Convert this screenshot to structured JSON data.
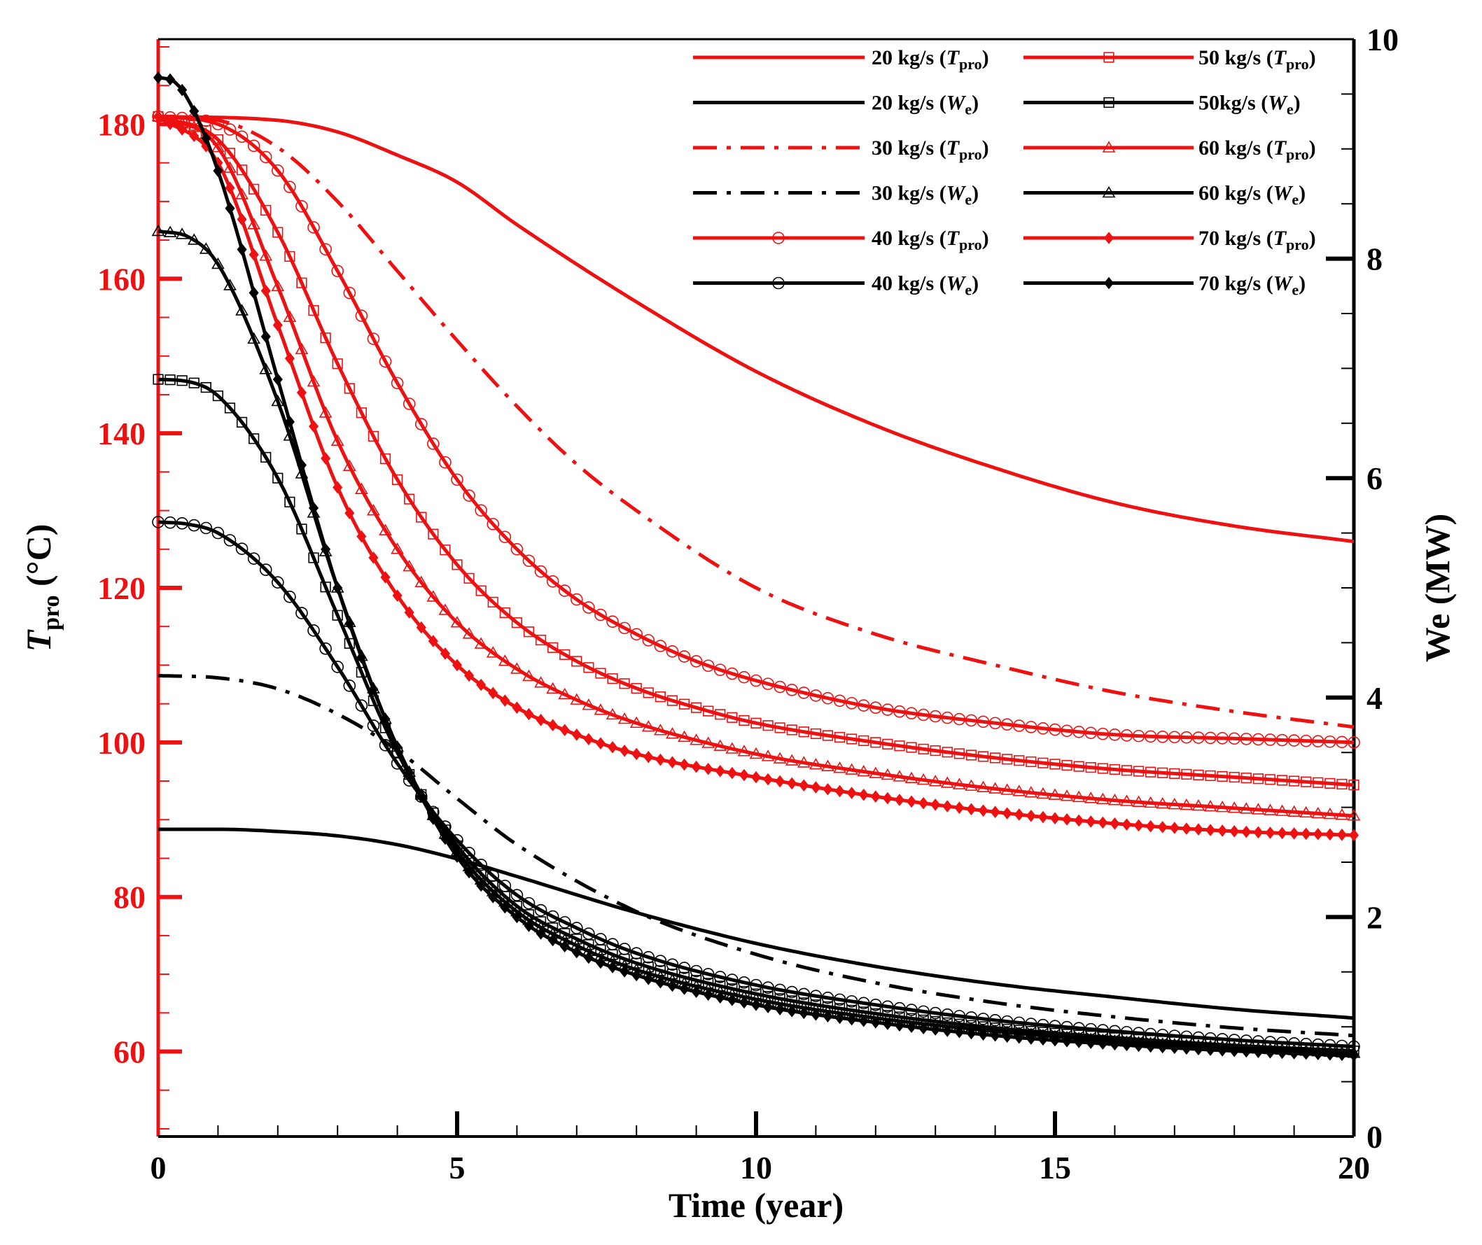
{
  "chart_data": {
    "type": "line",
    "colors": {
      "tpro": "#ee1111",
      "we": "#000000"
    },
    "x_axis": {
      "label": "Time (year)",
      "range": [
        0,
        20
      ],
      "ticks": [
        0,
        5,
        10,
        15,
        20
      ],
      "tick_labels": [
        "0",
        "5",
        "10",
        "15",
        "20"
      ]
    },
    "y_left": {
      "label_main": "T",
      "label_sub": "pro",
      "label_unit": " (°C)",
      "range": [
        49,
        191
      ],
      "ticks": [
        60,
        80,
        100,
        120,
        140,
        160,
        180
      ],
      "tick_labels": [
        "60",
        "80",
        "100",
        "120",
        "140",
        "160",
        "180"
      ]
    },
    "y_right": {
      "label": "We (MW)",
      "range": [
        0,
        10
      ],
      "ticks": [
        0,
        2,
        4,
        6,
        8,
        10
      ],
      "tick_labels": [
        "0",
        "2",
        "4",
        "6",
        "8",
        "10"
      ]
    },
    "legend": {
      "position": "top-right",
      "entries": [
        {
          "id": "t20",
          "prefix": "20 kg/s (",
          "var": "T",
          "sub": "pro",
          "suffix": ")"
        },
        {
          "id": "w20",
          "prefix": "20 kg/s (",
          "var": "W",
          "sub": "e",
          "suffix": ")"
        },
        {
          "id": "t30",
          "prefix": "30 kg/s (",
          "var": "T",
          "sub": "pro",
          "suffix": ")"
        },
        {
          "id": "w30",
          "prefix": "30 kg/s (",
          "var": "W",
          "sub": "e",
          "suffix": ")"
        },
        {
          "id": "t40",
          "prefix": "40 kg/s (",
          "var": "T",
          "sub": "pro",
          "suffix": ")"
        },
        {
          "id": "w40",
          "prefix": "40 kg/s (",
          "var": "W",
          "sub": "e",
          "suffix": ")"
        },
        {
          "id": "t50",
          "prefix": "50 kg/s (",
          "var": "T",
          "sub": "pro",
          "suffix": ")"
        },
        {
          "id": "w50",
          "prefix": "50kg/s (",
          "var": "W",
          "sub": "e",
          "suffix": ")"
        },
        {
          "id": "t60",
          "prefix": "60 kg/s (",
          "var": "T",
          "sub": "pro",
          "suffix": ")"
        },
        {
          "id": "w60",
          "prefix": "60 kg/s (",
          "var": "W",
          "sub": "e",
          "suffix": ")"
        },
        {
          "id": "t70",
          "prefix": "70 kg/s (",
          "var": "T",
          "sub": "pro",
          "suffix": ")"
        },
        {
          "id": "w70",
          "prefix": "70 kg/s (",
          "var": "W",
          "sub": "e",
          "suffix": ")"
        }
      ]
    },
    "series": [
      {
        "id": "t20",
        "name": "20 kg/s (Tpro)",
        "axis": "left",
        "style": "solid",
        "marker": "none",
        "x": [
          0,
          2,
          3,
          4,
          5,
          6,
          8,
          10,
          12,
          14,
          16,
          18,
          20
        ],
        "y": [
          181,
          180.5,
          179,
          176,
          172.5,
          167,
          157,
          148,
          141,
          135.5,
          131,
          128,
          126
        ]
      },
      {
        "id": "t30",
        "name": "30 kg/s (Tpro)",
        "axis": "left",
        "style": "dashdot",
        "marker": "none",
        "x": [
          0,
          1,
          2,
          3,
          4,
          5,
          6,
          7,
          8,
          10,
          12,
          14,
          16,
          18,
          20
        ],
        "y": [
          181,
          180.5,
          177,
          170,
          161,
          152,
          143.5,
          136,
          130,
          120,
          114,
          110,
          106.5,
          104,
          102
        ]
      },
      {
        "id": "t40",
        "name": "40 kg/s (Tpro)",
        "axis": "left",
        "style": "solid",
        "marker": "circle",
        "x": [
          0,
          1,
          2,
          3,
          4,
          5,
          6,
          7,
          8,
          9,
          10,
          12,
          14,
          16,
          18,
          20
        ],
        "y": [
          181,
          180,
          174,
          161,
          146.5,
          134,
          125,
          118.5,
          114,
          110.5,
          108,
          104.5,
          102.5,
          101,
          100.5,
          100
        ]
      },
      {
        "id": "t50",
        "name": "50 kg/s (Tpro)",
        "axis": "left",
        "style": "solid",
        "marker": "square",
        "x": [
          0,
          1,
          2,
          3,
          4,
          5,
          6,
          7,
          8,
          9,
          10,
          12,
          14,
          16,
          18,
          20
        ],
        "y": [
          181,
          178,
          166,
          149,
          134,
          123,
          115.5,
          110.5,
          107,
          104.5,
          102.5,
          100,
          98,
          96.5,
          95.5,
          94.5
        ]
      },
      {
        "id": "t60",
        "name": "60 kg/s (Tpro)",
        "axis": "left",
        "style": "solid",
        "marker": "triangle",
        "x": [
          0,
          1,
          2,
          3,
          4,
          5,
          6,
          7,
          8,
          10,
          12,
          14,
          16,
          18,
          20
        ],
        "y": [
          181,
          177,
          159,
          139,
          125,
          115.5,
          109.5,
          105.5,
          102.5,
          98.5,
          96,
          94,
          92.5,
          91.5,
          90.5
        ]
      },
      {
        "id": "t70",
        "name": "70 kg/s (Tpro)",
        "axis": "left",
        "style": "solid",
        "marker": "diamond",
        "x": [
          0,
          1,
          2,
          3,
          4,
          5,
          6,
          7,
          8,
          10,
          12,
          14,
          16,
          18,
          20
        ],
        "y": [
          181,
          175,
          154,
          133,
          119,
          110,
          104.5,
          101,
          98.5,
          95.5,
          93,
          91,
          89.5,
          88.5,
          88
        ]
      },
      {
        "id": "w20",
        "name": "20 kg/s (We)",
        "axis": "right",
        "style": "solid",
        "marker": "none",
        "x": [
          0,
          1,
          2,
          3,
          4,
          5,
          6,
          8,
          10,
          12,
          14,
          16,
          18,
          20
        ],
        "y": [
          2.8,
          2.8,
          2.78,
          2.74,
          2.66,
          2.53,
          2.37,
          2.04,
          1.76,
          1.55,
          1.39,
          1.27,
          1.16,
          1.08
        ]
      },
      {
        "id": "w30",
        "name": "30 kg/s (We)",
        "axis": "right",
        "style": "dashdot",
        "marker": "none",
        "x": [
          0,
          1,
          2,
          3,
          4,
          5,
          6,
          8,
          10,
          12,
          14,
          16,
          18,
          20
        ],
        "y": [
          4.2,
          4.18,
          4.08,
          3.85,
          3.52,
          3.08,
          2.66,
          2.05,
          1.66,
          1.4,
          1.22,
          1.09,
          0.99,
          0.92
        ]
      },
      {
        "id": "w40",
        "name": "40 kg/s (We)",
        "axis": "right",
        "style": "solid",
        "marker": "circle",
        "x": [
          0,
          0.5,
          1,
          2,
          3,
          4,
          5,
          6,
          7,
          8,
          10,
          12,
          14,
          16,
          18,
          20
        ],
        "y": [
          5.6,
          5.58,
          5.5,
          5.05,
          4.28,
          3.4,
          2.7,
          2.2,
          1.9,
          1.67,
          1.38,
          1.2,
          1.06,
          0.96,
          0.88,
          0.82
        ]
      },
      {
        "id": "w50",
        "name": "50kg/s (We)",
        "axis": "right",
        "style": "solid",
        "marker": "square",
        "x": [
          0,
          0.5,
          1,
          2,
          3,
          4,
          5,
          6,
          7,
          8,
          10,
          12,
          14,
          16,
          18,
          20
        ],
        "y": [
          6.9,
          6.88,
          6.75,
          6.0,
          4.75,
          3.5,
          2.65,
          2.1,
          1.8,
          1.58,
          1.3,
          1.12,
          0.99,
          0.9,
          0.83,
          0.78
        ]
      },
      {
        "id": "w60",
        "name": "60 kg/s (We)",
        "axis": "right",
        "style": "solid",
        "marker": "triangle",
        "x": [
          0,
          0.5,
          1,
          2,
          3,
          4,
          5,
          6,
          7,
          8,
          10,
          12,
          14,
          16,
          18,
          20
        ],
        "y": [
          8.25,
          8.2,
          7.95,
          6.7,
          5.0,
          3.55,
          2.6,
          2.05,
          1.74,
          1.52,
          1.25,
          1.08,
          0.96,
          0.87,
          0.81,
          0.76
        ]
      },
      {
        "id": "w70",
        "name": "70 kg/s (We)",
        "axis": "right",
        "style": "solid",
        "marker": "diamond",
        "x": [
          0,
          0.25,
          0.5,
          1,
          2,
          3,
          4,
          5,
          6,
          7,
          8,
          10,
          12,
          14,
          16,
          18,
          20
        ],
        "y": [
          9.65,
          9.62,
          9.45,
          8.8,
          6.9,
          5.0,
          3.55,
          2.55,
          2.0,
          1.68,
          1.47,
          1.2,
          1.04,
          0.92,
          0.84,
          0.78,
          0.74
        ]
      }
    ]
  }
}
